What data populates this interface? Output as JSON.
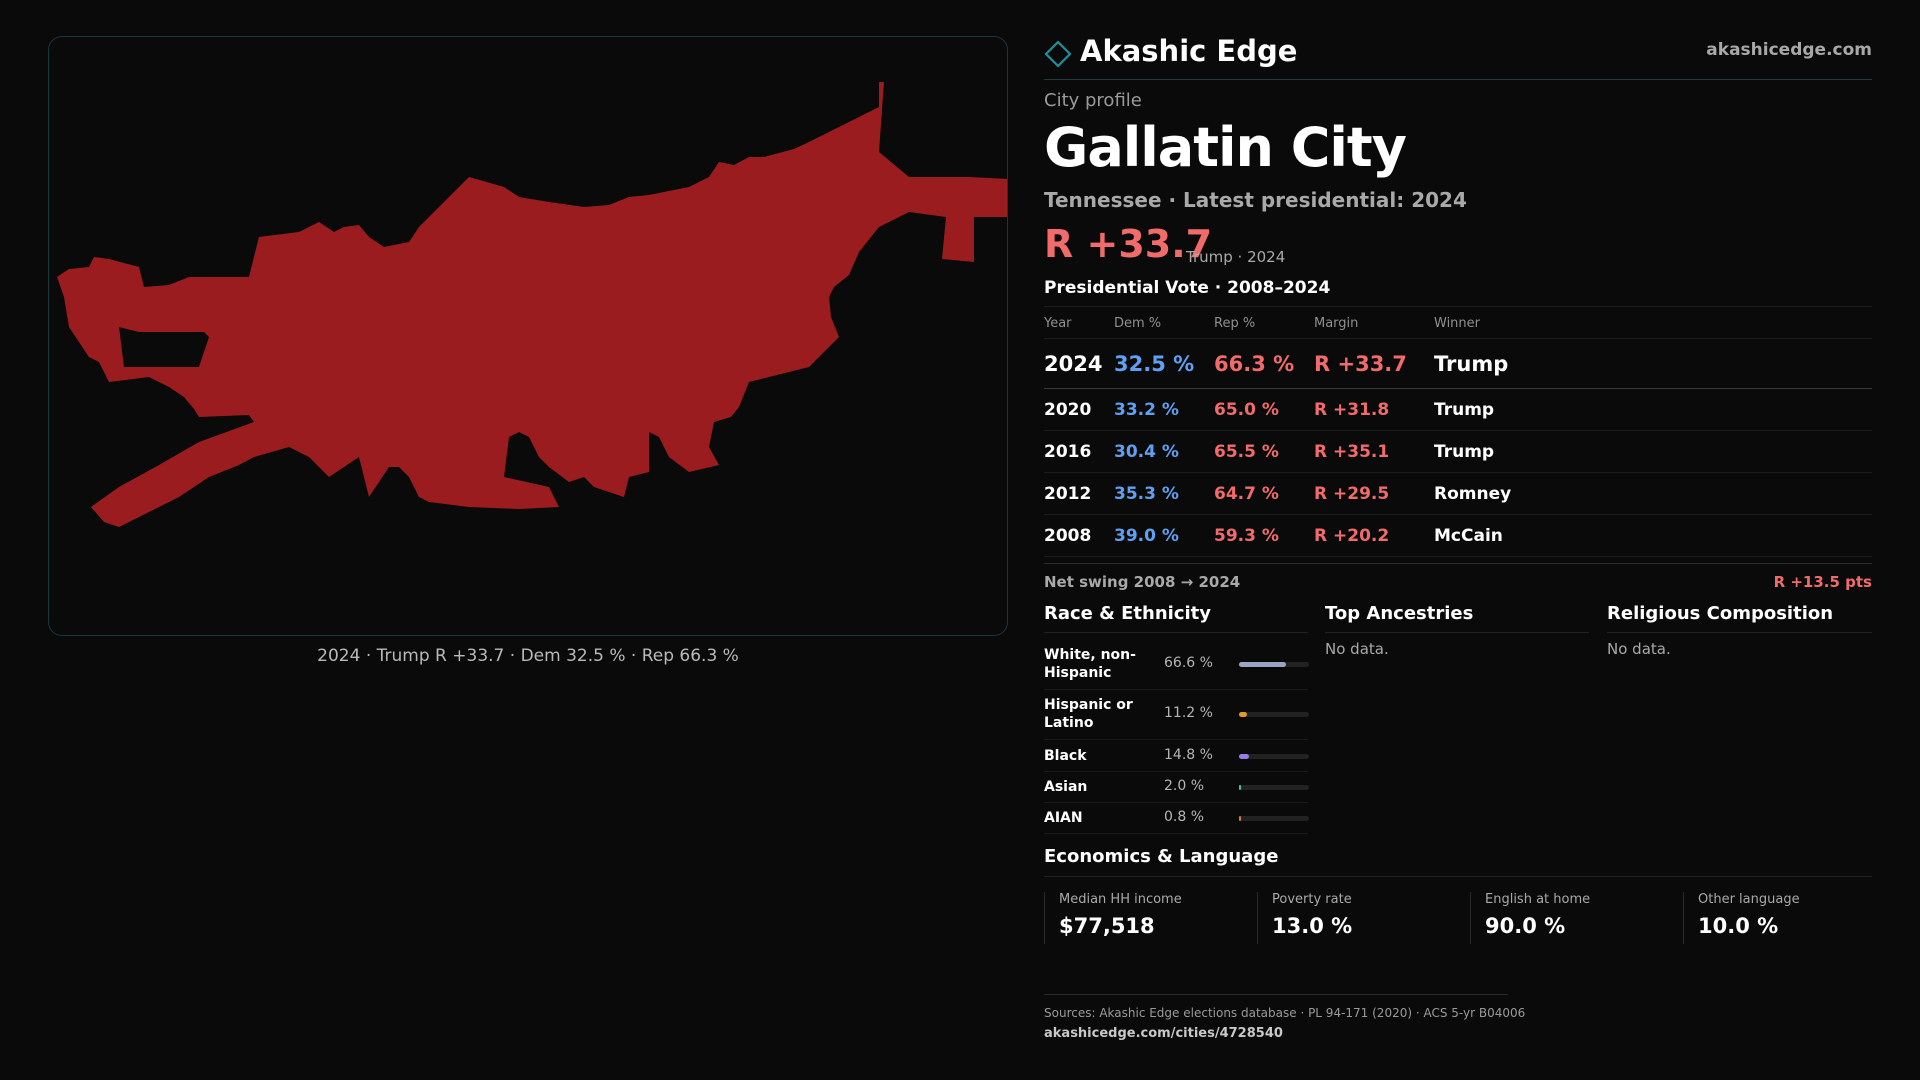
{
  "brand": {
    "name": "Akashic Edge",
    "url": "akashicedge.com"
  },
  "profile": {
    "kicker": "City profile",
    "city": "Gallatin City",
    "subline": "Tennessee · Latest presidential: 2024",
    "margin": "R +33.7",
    "margin_note": "Trump · 2024"
  },
  "map": {
    "caption": "2024 · Trump R +33.7 · Dem 32.5 % · Rep 66.3 %",
    "fill_color": "#9b1c1f",
    "border_color": "#15373d"
  },
  "votes": {
    "title": "Presidential Vote · 2008–2024",
    "headers": {
      "year": "Year",
      "dem": "Dem %",
      "rep": "Rep %",
      "margin": "Margin",
      "winner": "Winner"
    },
    "rows": [
      {
        "year": "2024",
        "dem": "32.5 %",
        "rep": "66.3 %",
        "margin": "R +33.7",
        "winner": "Trump"
      },
      {
        "year": "2020",
        "dem": "33.2 %",
        "rep": "65.0 %",
        "margin": "R +31.8",
        "winner": "Trump"
      },
      {
        "year": "2016",
        "dem": "30.4 %",
        "rep": "65.5 %",
        "margin": "R +35.1",
        "winner": "Trump"
      },
      {
        "year": "2012",
        "dem": "35.3 %",
        "rep": "64.7 %",
        "margin": "R +29.5",
        "winner": "Romney"
      },
      {
        "year": "2008",
        "dem": "39.0 %",
        "rep": "59.3 %",
        "margin": "R +20.2",
        "winner": "McCain"
      }
    ],
    "swing_label": "Net swing 2008 → 2024",
    "swing_value": "R +13.5 pts"
  },
  "race": {
    "title": "Race & Ethnicity",
    "rows": [
      {
        "label": "White, non-Hispanic",
        "pct": "66.6 %",
        "share": 0.666,
        "color": "#9aa6bf"
      },
      {
        "label": "Hispanic or Latino",
        "pct": "11.2 %",
        "share": 0.112,
        "color": "#e39a2d"
      },
      {
        "label": "Black",
        "pct": "14.8 %",
        "share": 0.148,
        "color": "#9b7be8"
      },
      {
        "label": "Asian",
        "pct": "2.0 %",
        "share": 0.02,
        "color": "#3fc7a4"
      },
      {
        "label": "AIAN",
        "pct": "0.8 %",
        "share": 0.008,
        "color": "#e0733a"
      }
    ]
  },
  "ancestries": {
    "title": "Top Ancestries",
    "empty": "No data."
  },
  "religion": {
    "title": "Religious Composition",
    "empty": "No data."
  },
  "economics": {
    "title": "Economics & Language",
    "stats": [
      {
        "label": "Median HH income",
        "value": "$77,518"
      },
      {
        "label": "Poverty rate",
        "value": "13.0 %"
      },
      {
        "label": "English at home",
        "value": "90.0 %"
      },
      {
        "label": "Other language",
        "value": "10.0 %"
      }
    ]
  },
  "footer": {
    "sources": "Sources: Akashic Edge elections database · PL 94-171 (2020) · ACS 5-yr B04006",
    "url": "akashicedge.com/cities/4728540"
  }
}
